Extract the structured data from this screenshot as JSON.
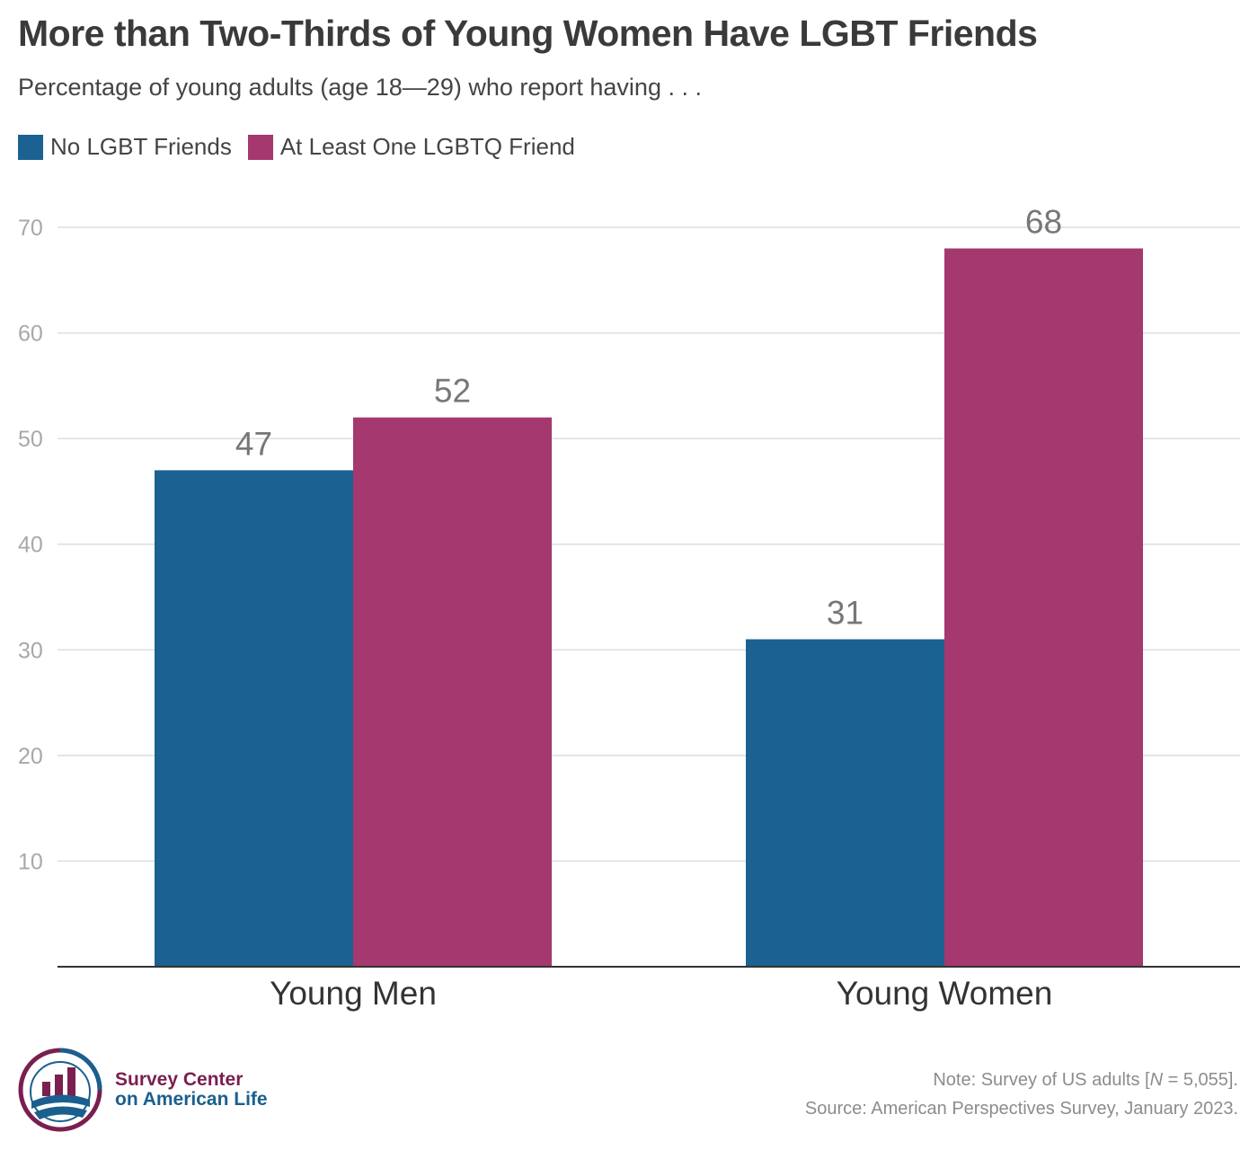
{
  "title": "More than Two-Thirds of Young Women Have LGBT Friends",
  "subtitle": "Percentage of young adults (age 18—29) who report having  . . .",
  "legend": [
    {
      "label": "No LGBT Friends",
      "color": "#1b6191"
    },
    {
      "label": "At Least One LGBTQ Friend",
      "color": "#a4386f"
    }
  ],
  "chart_data": {
    "type": "bar",
    "categories": [
      "Young Men",
      "Young Women"
    ],
    "series": [
      {
        "name": "No LGBT Friends",
        "values": [
          47,
          31
        ],
        "color": "#1b6191"
      },
      {
        "name": "At Least One LGBTQ Friend",
        "values": [
          52,
          68
        ],
        "color": "#a4386f"
      }
    ],
    "yticks": [
      10,
      20,
      30,
      40,
      50,
      60,
      70
    ],
    "ylim": [
      0,
      70
    ],
    "grid": true,
    "legend_position": "top-left"
  },
  "footer": {
    "note_prefix": "Note: Survey of US adults [",
    "note_n": "N",
    "note_suffix": " = 5,055].",
    "source": "Source: American Perspectives Survey, January 2023."
  },
  "logo": {
    "line1": "Survey Center",
    "line2": "on American Life",
    "primary_color": "#7a1f4f",
    "secondary_color": "#1a5f8e"
  }
}
